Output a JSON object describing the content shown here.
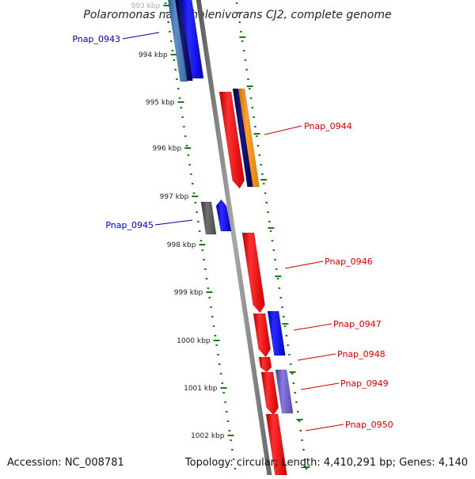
{
  "title": "Polaromonas naphthalenivorans CJ2, complete genome",
  "footer": {
    "accession": "Accession: NC_008781",
    "info": "Topology: circular; Length: 4,410,291 bp; Genes: 4,140"
  },
  "colors": {
    "backbone": "#808080",
    "tick": "#1a7a1a",
    "forward_label": "#cc0000",
    "reverse_label": "#0000aa"
  },
  "ticks": [
    {
      "label": "993 kbp",
      "faded": true
    },
    {
      "label": "994 kbp"
    },
    {
      "label": "995 kbp"
    },
    {
      "label": "996 kbp"
    },
    {
      "label": "997 kbp"
    },
    {
      "label": "998 kbp"
    },
    {
      "label": "999 kbp"
    },
    {
      "label": "1000 kbp"
    },
    {
      "label": "1001 kbp"
    },
    {
      "label": "1002 kbp"
    }
  ],
  "gene_labels": [
    {
      "name": "Pnap_0943",
      "strand": "reverse"
    },
    {
      "name": "Pnap_0944",
      "strand": "forward"
    },
    {
      "name": "Pnap_0945",
      "strand": "reverse"
    },
    {
      "name": "Pnap_0946",
      "strand": "forward"
    },
    {
      "name": "Pnap_0947",
      "strand": "forward"
    },
    {
      "name": "Pnap_0948",
      "strand": "forward"
    },
    {
      "name": "Pnap_0949",
      "strand": "forward"
    },
    {
      "name": "Pnap_0950",
      "strand": "forward"
    }
  ]
}
